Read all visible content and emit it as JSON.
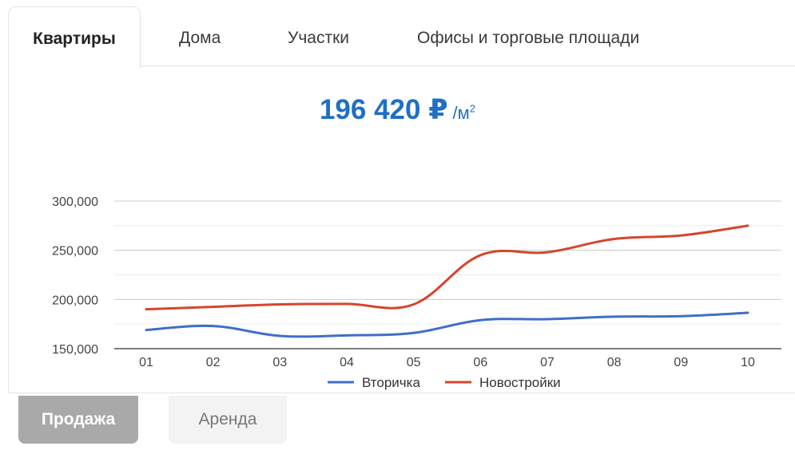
{
  "tabs": [
    {
      "label": "Квартиры",
      "active": true
    },
    {
      "label": "Дома",
      "active": false
    },
    {
      "label": "Участки",
      "active": false
    },
    {
      "label": "Офисы и торговые площади",
      "active": false
    }
  ],
  "price": {
    "value": "196 420 ₽",
    "unit": "/м",
    "unit_sup": "2"
  },
  "buttons": {
    "sale": "Продажа",
    "rent": "Аренда"
  },
  "colors": {
    "price": "#1f6fc5",
    "secondary": "#3f6fc6",
    "new": "#d6452c"
  },
  "chart_data": {
    "type": "line",
    "x": [
      "01",
      "02",
      "03",
      "04",
      "05",
      "06",
      "07",
      "08",
      "09",
      "10"
    ],
    "series": [
      {
        "name": "Вторичка",
        "color": "#3f6fc6",
        "values": [
          169000,
          173000,
          163000,
          163500,
          166000,
          179000,
          180000,
          182500,
          183000,
          186500
        ]
      },
      {
        "name": "Новостройки",
        "color": "#d6452c",
        "values": [
          190000,
          192500,
          195000,
          195500,
          195000,
          245000,
          248000,
          261500,
          265000,
          275000
        ]
      }
    ],
    "yticks": [
      150000,
      200000,
      250000,
      300000
    ],
    "ytick_labels": [
      "150,000",
      "200,000",
      "250,000",
      "300,000"
    ],
    "ylim": [
      150000,
      300000
    ],
    "grid": true,
    "legend_position": "bottom"
  }
}
